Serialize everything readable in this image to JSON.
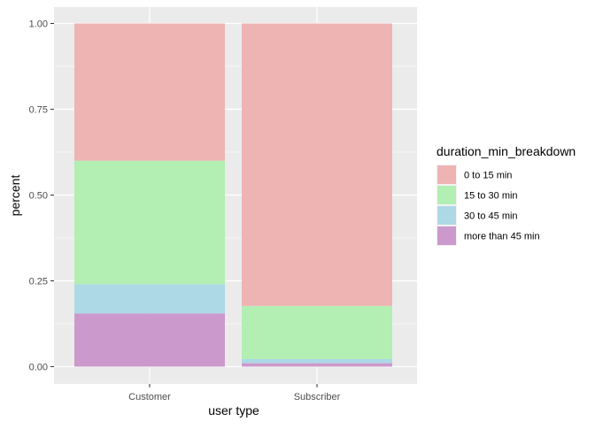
{
  "chart_data": {
    "type": "bar",
    "stacked": true,
    "categories": [
      "Customer",
      "Subscriber"
    ],
    "series": [
      {
        "name": "more than 45 min",
        "values": [
          0.155,
          0.01
        ],
        "color": "#CC99CC"
      },
      {
        "name": "30 to 45 min",
        "values": [
          0.085,
          0.012
        ],
        "color": "#ADD8E6"
      },
      {
        "name": "15 to 30 min",
        "values": [
          0.36,
          0.155
        ],
        "color": "#B3EEB3"
      },
      {
        "name": "0 to 15 min",
        "values": [
          0.4,
          0.823
        ],
        "color": "#EEB4B4"
      }
    ],
    "xlabel": "user type",
    "ylabel": "percent",
    "ylim": [
      0,
      1
    ],
    "yticks": [
      "0.00",
      "0.25",
      "0.50",
      "0.75",
      "1.00"
    ],
    "legend": {
      "title": "duration_min_breakdown",
      "position": "right",
      "entries": [
        "0 to 15 min",
        "15 to 30 min",
        "30 to 45 min",
        "more than 45 min"
      ]
    },
    "grid": true,
    "panel_background": "#EBEBEB"
  }
}
